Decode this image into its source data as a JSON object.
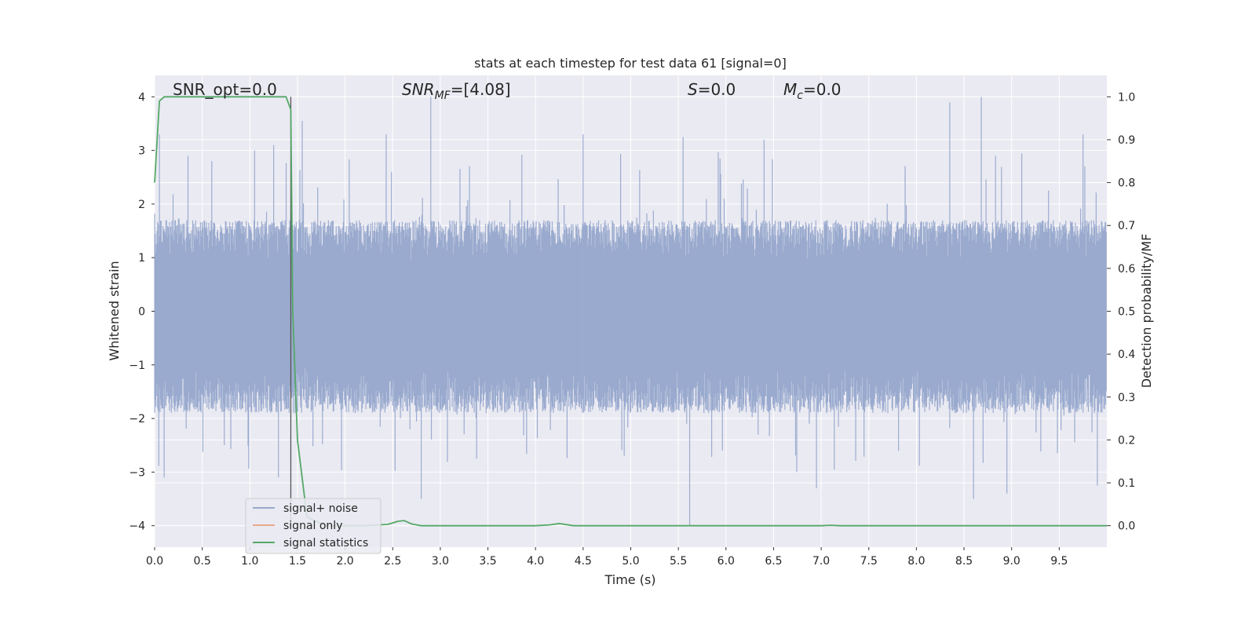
{
  "chart_data": {
    "type": "line",
    "title": "stats at each timestep for test data 61 [signal=0]",
    "xlabel": "Time (s)",
    "ylabel": "Whitened strain",
    "y2label": "Detection probability/MF",
    "xlim": [
      0.0,
      10.0
    ],
    "ylim": [
      -4.4,
      4.4
    ],
    "y2lim": [
      -0.05,
      1.05
    ],
    "xticks": [
      "0.0",
      "0.5",
      "1.0",
      "1.5",
      "2.0",
      "2.5",
      "3.0",
      "3.5",
      "4.0",
      "4.5",
      "5.0",
      "5.5",
      "6.0",
      "6.5",
      "7.0",
      "7.5",
      "8.0",
      "8.5",
      "9.0",
      "9.5"
    ],
    "yticks": [
      "4",
      "3",
      "2",
      "1",
      "0",
      "−1",
      "−2",
      "−3",
      "−4"
    ],
    "y2ticks": [
      "1.0",
      "0.9",
      "0.8",
      "0.7",
      "0.6",
      "0.5",
      "0.4",
      "0.3",
      "0.2",
      "0.1",
      "0.0"
    ],
    "grid": true,
    "legend_position": "lower-left",
    "annotations": {
      "snr_opt": "SNR_opt=0.0",
      "snr_mf_main": "SNR",
      "snr_mf_sub": "MF",
      "snr_mf_value": "=[4.08]",
      "s_main": "S",
      "s_value": "=0.0",
      "mc_main": "M",
      "mc_sub": "c",
      "mc_value": "=0.0"
    },
    "vline_x": 1.43,
    "series": [
      {
        "name": "signal+ noise",
        "color": "#98a9cd",
        "axis": "left",
        "envelope": {
          "upper_typical": 1.7,
          "upper_peaks": [
            [
              0.05,
              3.3
            ],
            [
              0.35,
              2.9
            ],
            [
              0.6,
              2.8
            ],
            [
              1.05,
              3.0
            ],
            [
              1.25,
              3.1
            ],
            [
              1.55,
              3.55
            ],
            [
              2.43,
              3.3
            ],
            [
              2.9,
              4.0
            ],
            [
              4.5,
              3.3
            ],
            [
              5.55,
              3.25
            ],
            [
              6.4,
              3.2
            ],
            [
              8.35,
              3.9
            ],
            [
              8.68,
              4.0
            ],
            [
              9.75,
              3.3
            ]
          ],
          "lower_typical": -1.9,
          "lower_peaks": [
            [
              0.1,
              -3.1
            ],
            [
              1.3,
              -3.1
            ],
            [
              2.8,
              -3.5
            ],
            [
              5.62,
              -4.0
            ],
            [
              6.95,
              -3.3
            ],
            [
              8.6,
              -3.5
            ],
            [
              8.95,
              -3.4
            ],
            [
              9.9,
              -3.25
            ]
          ]
        }
      },
      {
        "name": "signal only",
        "color": "#e8a98e",
        "axis": "left",
        "values": []
      },
      {
        "name": "signal statistics",
        "color": "#55a868",
        "axis": "right",
        "x": [
          0.0,
          0.05,
          0.1,
          0.2,
          0.5,
          1.0,
          1.3,
          1.38,
          1.43,
          1.45,
          1.5,
          1.6,
          1.8,
          2.0,
          2.2,
          2.45,
          2.55,
          2.62,
          2.7,
          2.8,
          3.0,
          4.0,
          4.15,
          4.25,
          4.4,
          5.0,
          7.0,
          7.1,
          7.2,
          8.0,
          10.0
        ],
        "y": [
          0.8,
          0.99,
          1.0,
          1.0,
          1.0,
          1.0,
          1.0,
          1.0,
          0.97,
          0.5,
          0.2,
          0.02,
          0.0,
          0.0,
          0.0,
          0.003,
          0.01,
          0.012,
          0.004,
          0.0,
          0.0,
          0.0,
          0.002,
          0.005,
          0.0,
          0.0,
          0.0,
          0.001,
          0.0,
          0.0,
          0.0
        ]
      }
    ]
  }
}
